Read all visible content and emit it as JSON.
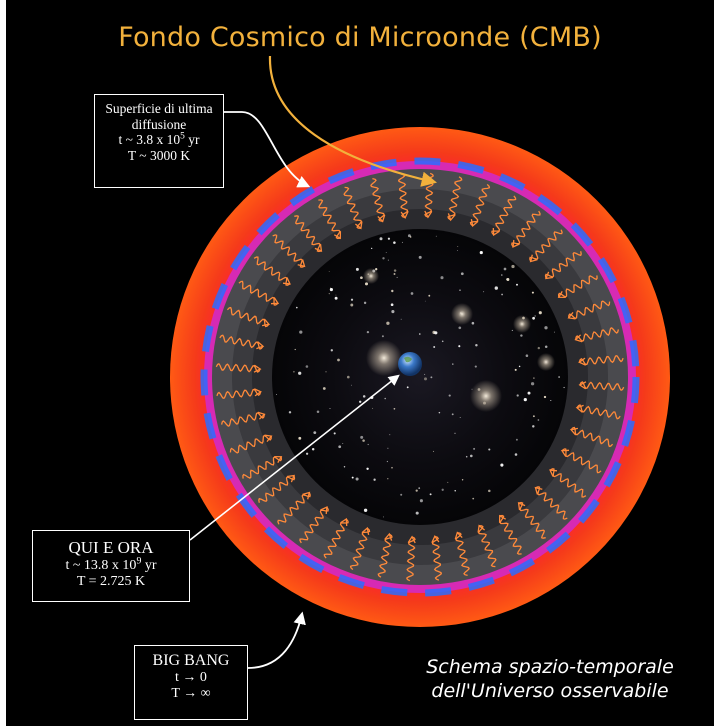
{
  "title": "Fondo Cosmico di Microonde (CMB)",
  "labels": {
    "surface": {
      "line1": "Superficie di ultima",
      "line2": "diffusione",
      "line3_prefix": "t ~ 3.8 x 10",
      "line3_exp": "5",
      "line3_suffix": " yr",
      "line4": "T ~ 3000 K"
    },
    "here": {
      "line1": "QUI E ORA",
      "line2_prefix": "t ~ 13.8 x 10",
      "line2_exp": "9",
      "line2_suffix": " yr",
      "line3": "T = 2.725 K"
    },
    "bigbang": {
      "line1": "BIG BANG",
      "line2": "t → 0",
      "line3": "T → ∞"
    }
  },
  "caption": {
    "line1": "Schema spazio-temporale",
    "line2": "dell'Universo osservabile"
  },
  "colors": {
    "background": "#000000",
    "title": "#f2b13c",
    "outer_ring": "#f23a1a",
    "cmb_blue": "#2a6cff",
    "cmb_magenta": "#ff2ad4",
    "wave": "#ff8a3a",
    "arrow": "#ffffff",
    "cmb_arrow": "#f2b13c"
  }
}
